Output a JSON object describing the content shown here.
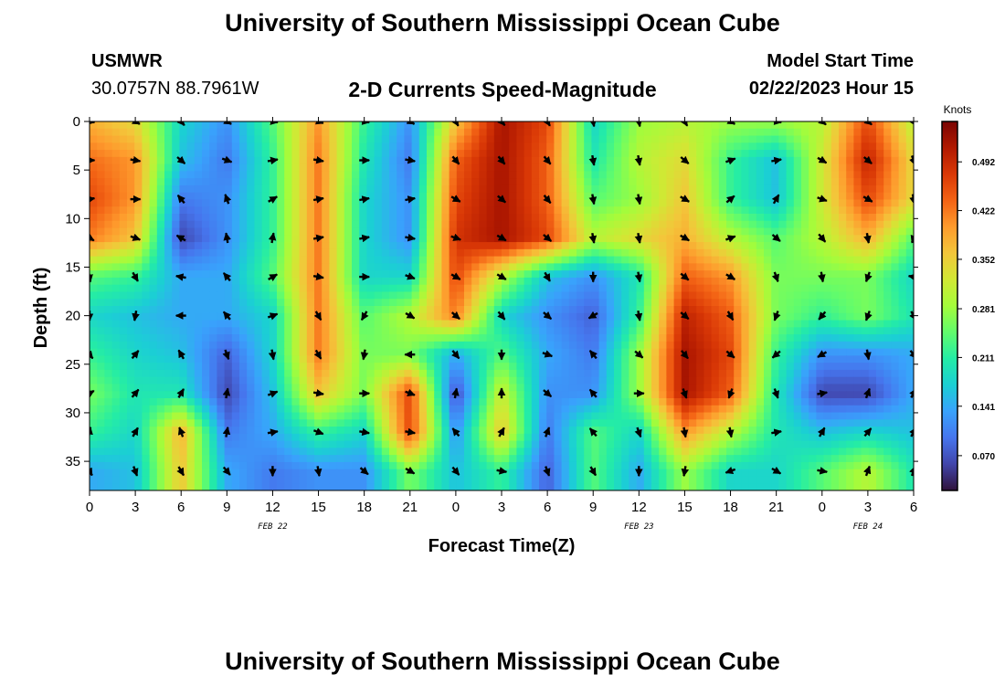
{
  "header": {
    "title": "University of Southern Mississippi Ocean Cube",
    "station_id": "USMWR",
    "coordinates": "30.0757N  88.7961W",
    "subtitle": "2-D Currents Speed-Magnitude",
    "model_start_label": "Model Start Time",
    "model_start_value": "02/22/2023 Hour 15"
  },
  "footer": {
    "title": "University of Southern Mississippi Ocean Cube"
  },
  "colors": {
    "background": "#ffffff",
    "arrow": "#000000",
    "ramp": [
      "#30123b",
      "#4145ab",
      "#4675ed",
      "#39a2fc",
      "#1bcfd4",
      "#24eca6",
      "#61fc6c",
      "#a4fc3b",
      "#d1e834",
      "#f3c63a",
      "#fe9b2d",
      "#f36315",
      "#d93806",
      "#b11901",
      "#7a0402"
    ]
  },
  "chart_data": {
    "type": "heatmap",
    "title": "2-D Currents Speed-Magnitude",
    "xlabel": "Forecast Time(Z)",
    "ylabel": "Depth (ft)",
    "xlim": [
      0,
      54
    ],
    "ylim": [
      0,
      38
    ],
    "x_ticks": [
      0,
      3,
      6,
      9,
      12,
      15,
      18,
      21,
      24,
      27,
      30,
      33,
      36,
      39,
      42,
      45,
      48,
      51,
      54
    ],
    "x_tick_labels": [
      "0",
      "3",
      "6",
      "9",
      "12",
      "15",
      "18",
      "21",
      "0",
      "3",
      "6",
      "9",
      "12",
      "15",
      "18",
      "21",
      "0",
      "3",
      "6"
    ],
    "y_ticks": [
      0,
      5,
      10,
      15,
      20,
      25,
      30,
      35
    ],
    "y_tick_labels": [
      "0",
      "5",
      "10",
      "15",
      "20",
      "25",
      "30",
      "35"
    ],
    "date_labels": [
      {
        "x": 12,
        "label": "FEB 22"
      },
      {
        "x": 36,
        "label": "FEB 23"
      },
      {
        "x": 51,
        "label": "FEB 24"
      }
    ],
    "colorbar": {
      "label": "Knots",
      "min": 0.02,
      "max": 0.55,
      "ticks": [
        0.07,
        0.141,
        0.211,
        0.281,
        0.352,
        0.422,
        0.492
      ],
      "tick_labels": [
        "0.070",
        "0.141",
        "0.211",
        "0.281",
        "0.352",
        "0.422",
        "0.492"
      ]
    },
    "x": [
      0,
      3,
      6,
      9,
      12,
      15,
      18,
      21,
      24,
      27,
      30,
      33,
      36,
      39,
      42,
      45,
      48,
      51,
      54
    ],
    "depths": [
      0,
      4,
      8,
      12,
      16,
      20,
      24,
      28,
      32,
      36
    ],
    "speed_knots": [
      [
        0.38,
        0.34,
        0.18,
        0.12,
        0.24,
        0.4,
        0.22,
        0.12,
        0.36,
        0.52,
        0.46,
        0.18,
        0.28,
        0.3,
        0.28,
        0.28,
        0.3,
        0.46,
        0.3
      ],
      [
        0.43,
        0.4,
        0.16,
        0.1,
        0.22,
        0.42,
        0.2,
        0.1,
        0.44,
        0.52,
        0.44,
        0.2,
        0.3,
        0.34,
        0.22,
        0.16,
        0.32,
        0.5,
        0.34
      ],
      [
        0.46,
        0.4,
        0.1,
        0.12,
        0.22,
        0.42,
        0.18,
        0.12,
        0.46,
        0.52,
        0.44,
        0.24,
        0.28,
        0.36,
        0.22,
        0.16,
        0.32,
        0.46,
        0.34
      ],
      [
        0.42,
        0.36,
        0.06,
        0.12,
        0.22,
        0.42,
        0.18,
        0.12,
        0.48,
        0.52,
        0.46,
        0.3,
        0.34,
        0.38,
        0.3,
        0.24,
        0.3,
        0.38,
        0.24
      ],
      [
        0.24,
        0.22,
        0.14,
        0.14,
        0.24,
        0.42,
        0.18,
        0.18,
        0.46,
        0.3,
        0.16,
        0.12,
        0.2,
        0.44,
        0.4,
        0.26,
        0.26,
        0.26,
        0.18
      ],
      [
        0.18,
        0.16,
        0.14,
        0.14,
        0.18,
        0.42,
        0.24,
        0.3,
        0.42,
        0.18,
        0.12,
        0.08,
        0.22,
        0.5,
        0.44,
        0.26,
        0.22,
        0.26,
        0.2
      ],
      [
        0.22,
        0.18,
        0.16,
        0.08,
        0.18,
        0.42,
        0.26,
        0.26,
        0.14,
        0.24,
        0.14,
        0.1,
        0.28,
        0.52,
        0.46,
        0.22,
        0.12,
        0.12,
        0.14
      ],
      [
        0.26,
        0.2,
        0.2,
        0.06,
        0.16,
        0.36,
        0.26,
        0.46,
        0.06,
        0.32,
        0.12,
        0.12,
        0.28,
        0.52,
        0.44,
        0.2,
        0.06,
        0.06,
        0.14
      ],
      [
        0.22,
        0.18,
        0.38,
        0.1,
        0.14,
        0.22,
        0.18,
        0.46,
        0.12,
        0.36,
        0.1,
        0.24,
        0.18,
        0.4,
        0.3,
        0.2,
        0.16,
        0.18,
        0.16
      ],
      [
        0.14,
        0.16,
        0.36,
        0.14,
        0.1,
        0.12,
        0.12,
        0.26,
        0.16,
        0.22,
        0.08,
        0.24,
        0.14,
        0.28,
        0.18,
        0.18,
        0.24,
        0.3,
        0.2
      ]
    ],
    "direction_deg": [
      [
        100,
        120,
        140,
        120,
        100,
        110,
        100,
        120,
        150,
        140,
        150,
        170,
        170,
        150,
        120,
        100,
        130,
        130,
        150
      ],
      [
        90,
        100,
        130,
        110,
        80,
        100,
        90,
        100,
        140,
        140,
        140,
        170,
        170,
        130,
        70,
        80,
        120,
        130,
        160
      ],
      [
        80,
        90,
        320,
        340,
        60,
        80,
        80,
        80,
        120,
        130,
        140,
        170,
        170,
        120,
        50,
        30,
        110,
        120,
        170
      ],
      [
        120,
        110,
        300,
        350,
        10,
        80,
        80,
        100,
        110,
        120,
        130,
        170,
        170,
        120,
        70,
        130,
        140,
        170,
        200
      ],
      [
        170,
        150,
        280,
        320,
        60,
        100,
        90,
        110,
        120,
        120,
        150,
        180,
        170,
        130,
        120,
        160,
        170,
        200,
        280
      ],
      [
        180,
        190,
        270,
        320,
        70,
        150,
        210,
        120,
        130,
        140,
        130,
        240,
        170,
        130,
        150,
        200,
        220,
        200,
        150
      ],
      [
        140,
        40,
        330,
        160,
        170,
        150,
        190,
        270,
        140,
        180,
        110,
        320,
        130,
        140,
        130,
        230,
        240,
        170,
        140
      ],
      [
        60,
        40,
        30,
        10,
        70,
        100,
        90,
        110,
        10,
        0,
        130,
        320,
        90,
        160,
        200,
        160,
        80,
        20,
        30
      ],
      [
        10,
        30,
        340,
        10,
        80,
        110,
        100,
        100,
        320,
        30,
        20,
        320,
        160,
        170,
        170,
        80,
        30,
        40,
        30
      ],
      [
        150,
        160,
        150,
        140,
        180,
        170,
        130,
        120,
        140,
        100,
        160,
        150,
        180,
        190,
        250,
        120,
        100,
        20,
        20
      ]
    ]
  }
}
